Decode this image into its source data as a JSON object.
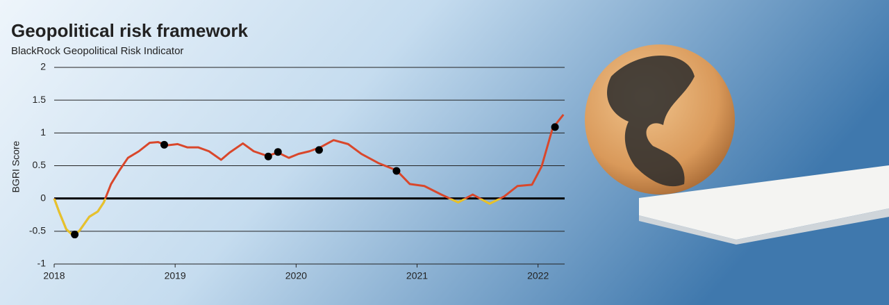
{
  "chart_data": {
    "type": "line",
    "title": "Geopolitical risk framework",
    "subtitle": "BlackRock Geopolitical Risk Indicator",
    "y_label": "BGRI Score",
    "x": [
      2018.0,
      2018.04,
      2018.1,
      2018.16,
      2018.21,
      2018.29,
      2018.36,
      2018.41,
      2018.47,
      2018.54,
      2018.61,
      2018.7,
      2018.79,
      2018.86,
      2018.93,
      2019.02,
      2019.1,
      2019.19,
      2019.28,
      2019.38,
      2019.45,
      2019.56,
      2019.65,
      2019.76,
      2019.85,
      2019.94,
      2020.02,
      2020.11,
      2020.2,
      2020.31,
      2020.43,
      2020.54,
      2020.68,
      2020.83,
      2020.94,
      2021.06,
      2021.2,
      2021.34,
      2021.46,
      2021.6,
      2021.72,
      2021.83,
      2021.95,
      2022.03,
      2022.12,
      2022.21
    ],
    "values": [
      0.0,
      -0.2,
      -0.47,
      -0.57,
      -0.49,
      -0.28,
      -0.2,
      -0.06,
      0.22,
      0.43,
      0.62,
      0.72,
      0.85,
      0.86,
      0.81,
      0.83,
      0.78,
      0.78,
      0.72,
      0.59,
      0.7,
      0.84,
      0.72,
      0.65,
      0.7,
      0.62,
      0.68,
      0.72,
      0.78,
      0.89,
      0.83,
      0.68,
      0.54,
      0.43,
      0.22,
      0.19,
      0.06,
      -0.06,
      0.06,
      -0.08,
      0.03,
      0.19,
      0.21,
      0.49,
      1.07,
      1.28
    ],
    "color": "#d9472b",
    "negative_color": "#e6c42a",
    "events": {
      "x": [
        2018.17,
        2018.91,
        2019.77,
        2019.85,
        2020.19,
        2020.83,
        2022.14
      ],
      "values": [
        -0.55,
        0.82,
        0.64,
        0.71,
        0.74,
        0.42,
        1.09
      ],
      "color": "#000000"
    },
    "xlim": [
      2018,
      2022.22
    ],
    "xticks": [
      2018,
      2019,
      2020,
      2021,
      2022
    ],
    "ylim": [
      -1,
      2
    ],
    "yticks": [
      -1,
      -0.5,
      0,
      0.5,
      1,
      1.5,
      2
    ],
    "grid": true
  }
}
